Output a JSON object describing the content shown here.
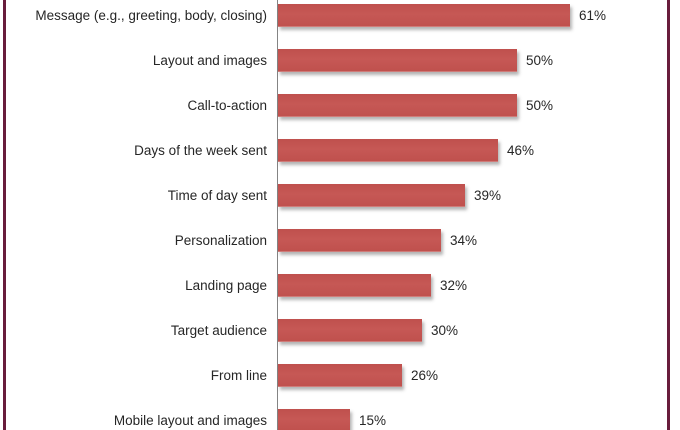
{
  "chart_data": {
    "type": "bar",
    "orientation": "horizontal",
    "title": "",
    "xlabel": "",
    "ylabel": "",
    "categories": [
      "Message (e.g., greeting, body, closing)",
      "Layout and images",
      "Call-to-action",
      "Days of the week sent",
      "Time of day sent",
      "Personalization",
      "Landing page",
      "Target audience",
      "From line",
      "Mobile layout and images"
    ],
    "values": [
      61,
      50,
      50,
      46,
      39,
      34,
      32,
      30,
      26,
      15
    ],
    "value_labels": [
      "61%",
      "50%",
      "50%",
      "46%",
      "39%",
      "34%",
      "32%",
      "30%",
      "26%",
      "15%"
    ],
    "xlim": [
      0,
      70
    ],
    "grid": false,
    "legend": false,
    "data_labels": "outside-end"
  },
  "colors": {
    "bar_fill": "#BF504D",
    "bar_fill_light": "#C65855",
    "axis_line": "#848484",
    "frame_border": "#681D3C",
    "label_text": "#262626",
    "background": "#FFFFFF"
  }
}
